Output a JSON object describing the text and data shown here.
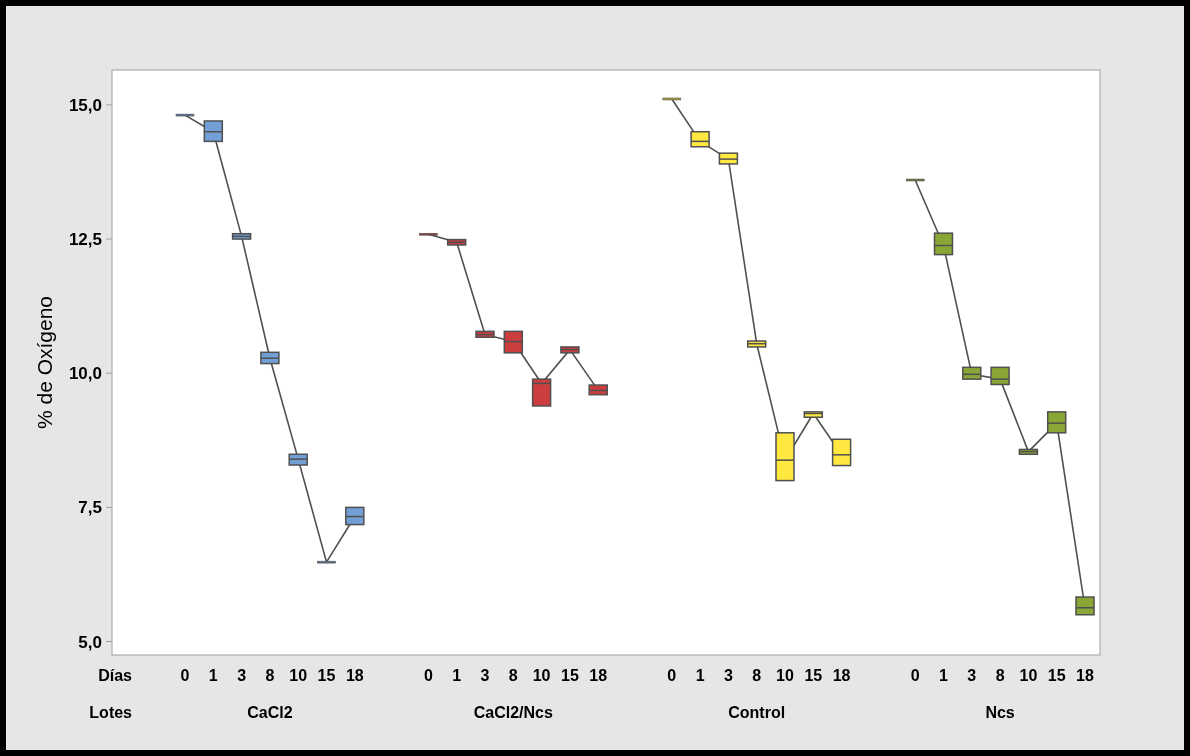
{
  "chart_data": [
    {
      "type": "box",
      "xlabel": "CaCl2",
      "ylabel": "% de Oxígeno",
      "annotations": [
        "Días",
        "Lotes"
      ],
      "categories": [
        "0",
        "1",
        "3",
        "8",
        "10",
        "15",
        "18"
      ],
      "ylim": [
        4.75,
        15.65
      ],
      "yticks": [
        {
          "value": 5,
          "label": "5,0"
        },
        {
          "value": 7.5,
          "label": "7,5"
        },
        {
          "value": 10,
          "label": "10,0"
        },
        {
          "value": 12.5,
          "label": "12,5"
        },
        {
          "value": 15,
          "label": "15,0"
        }
      ],
      "colors": [
        "#729fd6",
        "#729fd6",
        "#729fd6",
        "#729fd6",
        "#729fd6",
        "#729fd6",
        "#729fd6"
      ],
      "boxes": [
        {
          "low": 14.81,
          "q1": 14.81,
          "median": 14.81,
          "q3": 14.81,
          "high": 14.81
        },
        {
          "low": 14.32,
          "q1": 14.32,
          "median": 14.5,
          "q3": 14.7,
          "high": 14.7
        },
        {
          "low": 12.5,
          "q1": 12.5,
          "median": 12.55,
          "q3": 12.6,
          "high": 12.6
        },
        {
          "low": 10.18,
          "q1": 10.18,
          "median": 10.28,
          "q3": 10.39,
          "high": 10.39
        },
        {
          "low": 8.29,
          "q1": 8.29,
          "median": 8.4,
          "q3": 8.49,
          "high": 8.49
        },
        {
          "low": 6.48,
          "q1": 6.48,
          "median": 6.48,
          "q3": 6.48,
          "high": 6.48
        },
        {
          "low": 7.18,
          "q1": 7.18,
          "median": 7.33,
          "q3": 7.5,
          "high": 7.5
        }
      ],
      "series": [
        {
          "type": "line",
          "color": "#505050",
          "values": [
            14.81,
            14.5,
            12.55,
            10.28,
            8.4,
            6.48,
            7.33
          ]
        }
      ]
    },
    {
      "type": "box",
      "xlabel": "CaCl2/Ncs",
      "tick_labels": "x",
      "categories": [
        "0",
        "1",
        "3",
        "8",
        "10",
        "15",
        "18"
      ],
      "ylim": [
        4.75,
        15.65
      ],
      "colors": [
        "#cc3d3d",
        "#cc3d3d",
        "#cc3d3d",
        "#cc3d3d",
        "#cc3d3d",
        "#cc3d3d",
        "#cc3d3d"
      ],
      "boxes": [
        {
          "low": 12.59,
          "q1": 12.59,
          "median": 12.59,
          "q3": 12.59,
          "high": 12.59
        },
        {
          "low": 12.39,
          "q1": 12.39,
          "median": 12.44,
          "q3": 12.49,
          "high": 12.49
        },
        {
          "low": 10.67,
          "q1": 10.67,
          "median": 10.72,
          "q3": 10.78,
          "high": 10.78
        },
        {
          "low": 10.38,
          "q1": 10.38,
          "median": 10.59,
          "q3": 10.78,
          "high": 10.78
        },
        {
          "low": 9.39,
          "q1": 9.39,
          "median": 9.81,
          "q3": 9.89,
          "high": 9.89
        },
        {
          "low": 10.38,
          "q1": 10.38,
          "median": 10.44,
          "q3": 10.49,
          "high": 10.49
        },
        {
          "low": 9.6,
          "q1": 9.6,
          "median": 9.68,
          "q3": 9.78,
          "high": 9.78
        }
      ],
      "series": [
        {
          "type": "line",
          "color": "#505050",
          "values": [
            12.59,
            12.44,
            10.72,
            10.59,
            9.81,
            10.44,
            9.68
          ]
        }
      ]
    },
    {
      "type": "box",
      "xlabel": "Control",
      "tick_labels": "x",
      "categories": [
        "0",
        "1",
        "3",
        "8",
        "10",
        "15",
        "18"
      ],
      "ylim": [
        4.75,
        15.65
      ],
      "colors": [
        "#ffe840",
        "#ffe840",
        "#ffe840",
        "#ffe840",
        "#ffe840",
        "#ffe840",
        "#ffe840"
      ],
      "boxes": [
        {
          "low": 15.11,
          "q1": 15.11,
          "median": 15.11,
          "q3": 15.11,
          "high": 15.11
        },
        {
          "low": 14.22,
          "q1": 14.22,
          "median": 14.32,
          "q3": 14.5,
          "high": 14.5
        },
        {
          "low": 13.9,
          "q1": 13.9,
          "median": 13.99,
          "q3": 14.1,
          "high": 14.1
        },
        {
          "low": 10.49,
          "q1": 10.49,
          "median": 10.55,
          "q3": 10.6,
          "high": 10.6
        },
        {
          "low": 8.0,
          "q1": 8.0,
          "median": 8.38,
          "q3": 8.89,
          "high": 8.89
        },
        {
          "low": 9.18,
          "q1": 9.18,
          "median": 9.25,
          "q3": 9.28,
          "high": 9.28
        },
        {
          "low": 8.28,
          "q1": 8.28,
          "median": 8.48,
          "q3": 8.77,
          "high": 8.77
        }
      ],
      "series": [
        {
          "type": "line",
          "color": "#505050",
          "values": [
            15.11,
            14.32,
            13.99,
            10.55,
            8.38,
            9.25,
            8.48
          ]
        }
      ]
    },
    {
      "type": "box",
      "xlabel": "Ncs",
      "tick_labels": "x",
      "categories": [
        "0",
        "1",
        "3",
        "8",
        "10",
        "15",
        "18"
      ],
      "ylim": [
        4.75,
        15.65
      ],
      "colors": [
        "#8aa636",
        "#8aa636",
        "#8aa636",
        "#8aa636",
        "#8aa636",
        "#8aa636",
        "#8aa636"
      ],
      "boxes": [
        {
          "low": 13.6,
          "q1": 13.6,
          "median": 13.6,
          "q3": 13.6,
          "high": 13.6
        },
        {
          "low": 12.21,
          "q1": 12.21,
          "median": 12.38,
          "q3": 12.61,
          "high": 12.61
        },
        {
          "low": 9.89,
          "q1": 9.89,
          "median": 9.98,
          "q3": 10.11,
          "high": 10.11
        },
        {
          "low": 9.79,
          "q1": 9.79,
          "median": 9.89,
          "q3": 10.11,
          "high": 10.11
        },
        {
          "low": 8.49,
          "q1": 8.49,
          "median": 8.54,
          "q3": 8.58,
          "high": 8.58
        },
        {
          "low": 8.89,
          "q1": 8.89,
          "median": 9.07,
          "q3": 9.28,
          "high": 9.28
        },
        {
          "low": 5.5,
          "q1": 5.5,
          "median": 5.63,
          "q3": 5.83,
          "high": 5.83
        }
      ],
      "series": [
        {
          "type": "line",
          "color": "#505050",
          "values": [
            13.6,
            12.38,
            9.98,
            9.89,
            8.54,
            9.07,
            5.63
          ]
        }
      ]
    }
  ]
}
